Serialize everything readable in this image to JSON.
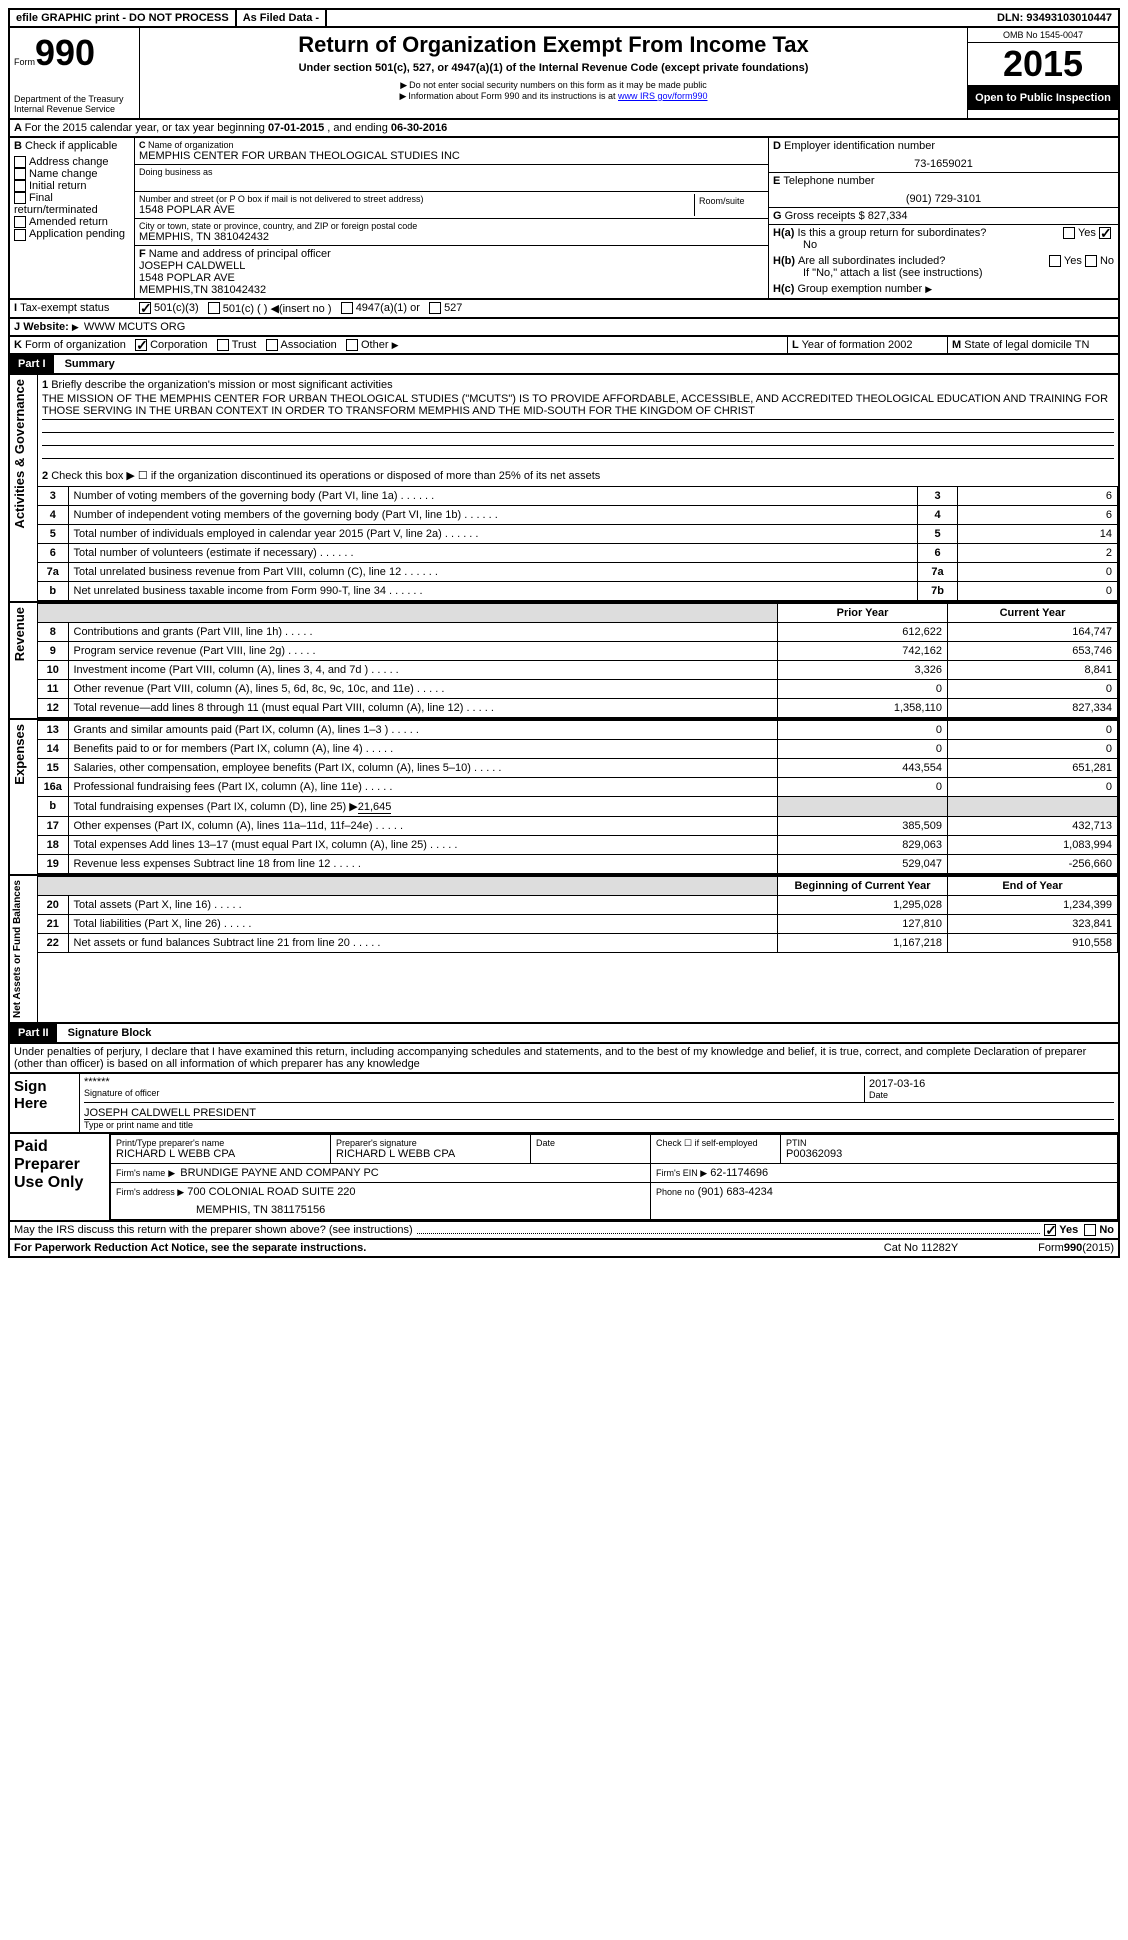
{
  "hdr": {
    "efile": "efile GRAPHIC print - DO NOT PROCESS",
    "filed": "As Filed Data -",
    "dln_label": "DLN:",
    "dln": "93493103010447"
  },
  "formNum": {
    "form": "Form",
    "num": "990",
    "dept": "Department of the Treasury",
    "irs": "Internal Revenue Service"
  },
  "title": {
    "main": "Return of Organization Exempt From Income Tax",
    "sub": "Under section 501(c), 527, or 4947(a)(1) of the Internal Revenue Code (except private foundations)",
    "warn": "Do not enter social security numbers on this form as it may be made public",
    "info": "Information about Form 990 and its instructions is at ",
    "url": "www IRS gov/form990"
  },
  "right": {
    "omb": "OMB No 1545-0047",
    "year": "2015",
    "open": "Open to Public Inspection"
  },
  "A": {
    "text": "For the 2015 calendar year, or tax year beginning ",
    "begin": "07-01-2015",
    "mid": " , and ending ",
    "end": "06-30-2016"
  },
  "B": {
    "label": "Check if applicable",
    "opts": [
      "Address change",
      "Name change",
      "Initial return",
      "Final return/terminated",
      "Amended return",
      "Application pending"
    ]
  },
  "C": {
    "nameLabel": "Name of organization",
    "name": "MEMPHIS CENTER FOR URBAN THEOLOGICAL STUDIES INC",
    "dba": "Doing business as",
    "addrLabel": "Number and street (or P O box if mail is not delivered to street address)",
    "room": "Room/suite",
    "addr": "1548 POPLAR AVE",
    "cityLabel": "City or town, state or province, country, and ZIP or foreign postal code",
    "city": "MEMPHIS, TN 381042432"
  },
  "D": {
    "label": "Employer identification number",
    "val": "73-1659021"
  },
  "E": {
    "label": "Telephone number",
    "val": "(901) 729-3101"
  },
  "G": {
    "label": "Gross receipts $",
    "val": "827,334"
  },
  "F": {
    "label": "Name and address of principal officer",
    "name": "JOSEPH CALDWELL",
    "addr": "1548 POPLAR AVE",
    "city": "MEMPHIS,TN 381042432"
  },
  "H": {
    "a": "Is this a group return for subordinates?",
    "aVal": "No",
    "b": "Are all subordinates included?",
    "note": "If \"No,\" attach a list (see instructions)",
    "c": "Group exemption number"
  },
  "I": {
    "label": "Tax-exempt status",
    "opts": [
      "501(c)(3)",
      "501(c) ( ) ◀(insert no )",
      "4947(a)(1) or",
      "527"
    ]
  },
  "J": {
    "label": "Website:",
    "val": "WWW MCUTS ORG"
  },
  "K": {
    "label": "Form of organization",
    "opts": [
      "Corporation",
      "Trust",
      "Association",
      "Other"
    ]
  },
  "L": {
    "label": "Year of formation",
    "val": "2002"
  },
  "M": {
    "label": "State of legal domicile",
    "val": "TN"
  },
  "part1": {
    "title": "Part I",
    "sub": "Summary"
  },
  "gov": {
    "q1": "Briefly describe the organization's mission or most significant activities",
    "mission": "THE MISSION OF THE MEMPHIS CENTER FOR URBAN THEOLOGICAL STUDIES (\"MCUTS\") IS TO PROVIDE AFFORDABLE, ACCESSIBLE, AND ACCREDITED THEOLOGICAL EDUCATION AND TRAINING FOR THOSE SERVING IN THE URBAN CONTEXT IN ORDER TO TRANSFORM MEMPHIS AND THE MID-SOUTH FOR THE KINGDOM OF CHRIST",
    "q2": "Check this box ▶ ☐ if the organization discontinued its operations or disposed of more than 25% of its net assets",
    "rows": [
      {
        "n": "3",
        "t": "Number of voting members of the governing body (Part VI, line 1a)",
        "k": "3",
        "v": "6"
      },
      {
        "n": "4",
        "t": "Number of independent voting members of the governing body (Part VI, line 1b)",
        "k": "4",
        "v": "6"
      },
      {
        "n": "5",
        "t": "Total number of individuals employed in calendar year 2015 (Part V, line 2a)",
        "k": "5",
        "v": "14"
      },
      {
        "n": "6",
        "t": "Total number of volunteers (estimate if necessary)",
        "k": "6",
        "v": "2"
      },
      {
        "n": "7a",
        "t": "Total unrelated business revenue from Part VIII, column (C), line 12",
        "k": "7a",
        "v": "0"
      },
      {
        "n": "b",
        "t": "Net unrelated business taxable income from Form 990-T, line 34",
        "k": "7b",
        "v": "0"
      }
    ],
    "side": "Activities & Governance"
  },
  "revHdr": {
    "prior": "Prior Year",
    "curr": "Current Year"
  },
  "rev": {
    "side": "Revenue",
    "rows": [
      {
        "n": "8",
        "t": "Contributions and grants (Part VIII, line 1h)",
        "p": "612,622",
        "c": "164,747"
      },
      {
        "n": "9",
        "t": "Program service revenue (Part VIII, line 2g)",
        "p": "742,162",
        "c": "653,746"
      },
      {
        "n": "10",
        "t": "Investment income (Part VIII, column (A), lines 3, 4, and 7d )",
        "p": "3,326",
        "c": "8,841"
      },
      {
        "n": "11",
        "t": "Other revenue (Part VIII, column (A), lines 5, 6d, 8c, 9c, 10c, and 11e)",
        "p": "0",
        "c": "0"
      },
      {
        "n": "12",
        "t": "Total revenue—add lines 8 through 11 (must equal Part VIII, column (A), line 12)",
        "p": "1,358,110",
        "c": "827,334"
      }
    ]
  },
  "exp": {
    "side": "Expenses",
    "rows": [
      {
        "n": "13",
        "t": "Grants and similar amounts paid (Part IX, column (A), lines 1–3 )",
        "p": "0",
        "c": "0"
      },
      {
        "n": "14",
        "t": "Benefits paid to or for members (Part IX, column (A), line 4)",
        "p": "0",
        "c": "0"
      },
      {
        "n": "15",
        "t": "Salaries, other compensation, employee benefits (Part IX, column (A), lines 5–10)",
        "p": "443,554",
        "c": "651,281"
      },
      {
        "n": "16a",
        "t": "Professional fundraising fees (Part IX, column (A), line 11e)",
        "p": "0",
        "c": "0"
      }
    ],
    "b": {
      "n": "b",
      "t": "Total fundraising expenses (Part IX, column (D), line 25) ▶",
      "v": "21,645"
    },
    "rows2": [
      {
        "n": "17",
        "t": "Other expenses (Part IX, column (A), lines 11a–11d, 11f–24e)",
        "p": "385,509",
        "c": "432,713"
      },
      {
        "n": "18",
        "t": "Total expenses Add lines 13–17 (must equal Part IX, column (A), line 25)",
        "p": "829,063",
        "c": "1,083,994"
      },
      {
        "n": "19",
        "t": "Revenue less expenses Subtract line 18 from line 12",
        "p": "529,047",
        "c": "-256,660"
      }
    ]
  },
  "net": {
    "side": "Net Assets or Fund Balances",
    "hdr": {
      "b": "Beginning of Current Year",
      "e": "End of Year"
    },
    "rows": [
      {
        "n": "20",
        "t": "Total assets (Part X, line 16)",
        "p": "1,295,028",
        "c": "1,234,399"
      },
      {
        "n": "21",
        "t": "Total liabilities (Part X, line 26)",
        "p": "127,810",
        "c": "323,841"
      },
      {
        "n": "22",
        "t": "Net assets or fund balances Subtract line 21 from line 20",
        "p": "1,167,218",
        "c": "910,558"
      }
    ]
  },
  "part2": {
    "title": "Part II",
    "sub": "Signature Block"
  },
  "perjury": "Under penalties of perjury, I declare that I have examined this return, including accompanying schedules and statements, and to the best of my knowledge and belief, it is true, correct, and complete Declaration of preparer (other than officer) is based on all information of which preparer has any knowledge",
  "sign": {
    "side": "Sign Here",
    "sig": "******",
    "sigLabel": "Signature of officer",
    "date": "2017-03-16",
    "dateLabel": "Date",
    "name": "JOSEPH CALDWELL PRESIDENT",
    "nameLabel": "Type or print name and title"
  },
  "prep": {
    "side": "Paid Preparer Use Only",
    "nameLabel": "Print/Type preparer's name",
    "name": "RICHARD L WEBB CPA",
    "sigLabel": "Preparer's signature",
    "sig": "RICHARD L WEBB CPA",
    "dateLabel": "Date",
    "selfLabel": "Check ☐ if self-employed",
    "ptinLabel": "PTIN",
    "ptin": "P00362093",
    "firmLabel": "Firm's name",
    "firm": "BRUNDIGE PAYNE AND COMPANY PC",
    "einLabel": "Firm's EIN ▶",
    "ein": "62-1174696",
    "addrLabel": "Firm's address ▶",
    "addr": "700 COLONIAL ROAD SUITE 220",
    "city": "MEMPHIS, TN 381175156",
    "phLabel": "Phone no",
    "ph": "(901) 683-4234"
  },
  "foot": {
    "discuss": "May the IRS discuss this return with the preparer shown above? (see instructions)",
    "yes": "Yes",
    "no": "No",
    "pra": "For Paperwork Reduction Act Notice, see the separate instructions.",
    "cat": "Cat No 11282Y",
    "form": "Form",
    "formnum": "990",
    "formyr": "(2015)"
  }
}
